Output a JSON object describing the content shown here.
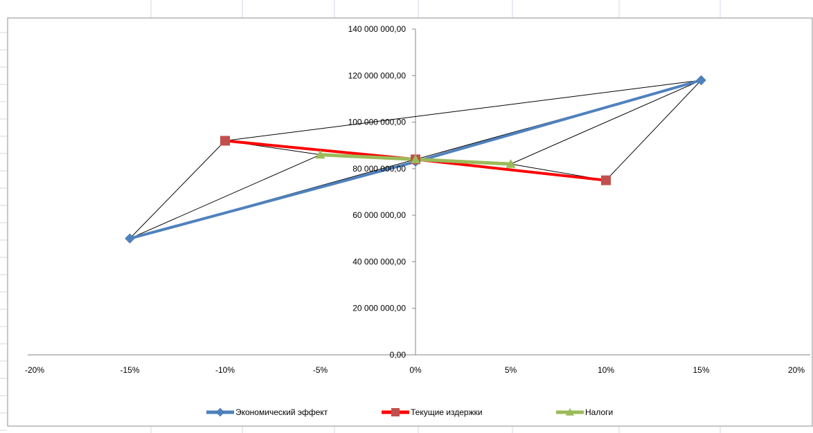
{
  "chart_data": {
    "type": "line",
    "title": "",
    "xlabel": "",
    "ylabel": "",
    "xlim": [
      -0.2,
      0.2
    ],
    "ylim": [
      0,
      140000000
    ],
    "x_ticks": [
      -0.2,
      -0.15,
      -0.1,
      -0.05,
      0,
      0.05,
      0.1,
      0.15,
      0.2
    ],
    "x_tick_labels": [
      "-20%",
      "-15%",
      "-10%",
      "-5%",
      "0%",
      "5%",
      "10%",
      "15%",
      "20%"
    ],
    "y_ticks": [
      0,
      20000000,
      40000000,
      60000000,
      80000000,
      100000000,
      120000000,
      140000000
    ],
    "y_tick_labels": [
      "0,00",
      "20 000 000,00",
      "40 000 000,00",
      "60 000 000,00",
      "80 000 000,00",
      "100 000 000,00",
      "120 000 000,00",
      "140 000 000,00"
    ],
    "grid": false,
    "legend_position": "bottom",
    "series": [
      {
        "name": "Экономический эффект",
        "color": "#4f81bd",
        "marker": "diamond",
        "x": [
          -0.15,
          0,
          0.15
        ],
        "y": [
          50000000,
          83000000,
          118000000
        ]
      },
      {
        "name": "Текущие издержки",
        "color": "#ff0000",
        "marker_color": "#c0504d",
        "marker": "square",
        "x": [
          -0.1,
          0,
          0.1
        ],
        "y": [
          92000000,
          84000000,
          75000000
        ]
      },
      {
        "name": "Налоги",
        "color": "#9bbb59",
        "marker": "triangle",
        "x": [
          -0.05,
          0,
          0.05
        ],
        "y": [
          86000000,
          84000000,
          82000000
        ]
      }
    ],
    "annotation_lines": {
      "color": "#000000",
      "segments": [
        [
          [
            -0.15,
            50000000
          ],
          [
            -0.1,
            92000000
          ]
        ],
        [
          [
            -0.15,
            50000000
          ],
          [
            -0.05,
            86000000
          ]
        ],
        [
          [
            -0.15,
            50000000
          ],
          [
            0.15,
            118000000
          ]
        ],
        [
          [
            -0.1,
            92000000
          ],
          [
            0.15,
            118000000
          ]
        ],
        [
          [
            -0.1,
            92000000
          ],
          [
            -0.05,
            86000000
          ]
        ],
        [
          [
            0.15,
            118000000
          ],
          [
            0.1,
            75000000
          ]
        ],
        [
          [
            0.15,
            118000000
          ],
          [
            0.05,
            82000000
          ]
        ],
        [
          [
            0.05,
            82000000
          ],
          [
            0.1,
            75000000
          ]
        ]
      ]
    }
  }
}
